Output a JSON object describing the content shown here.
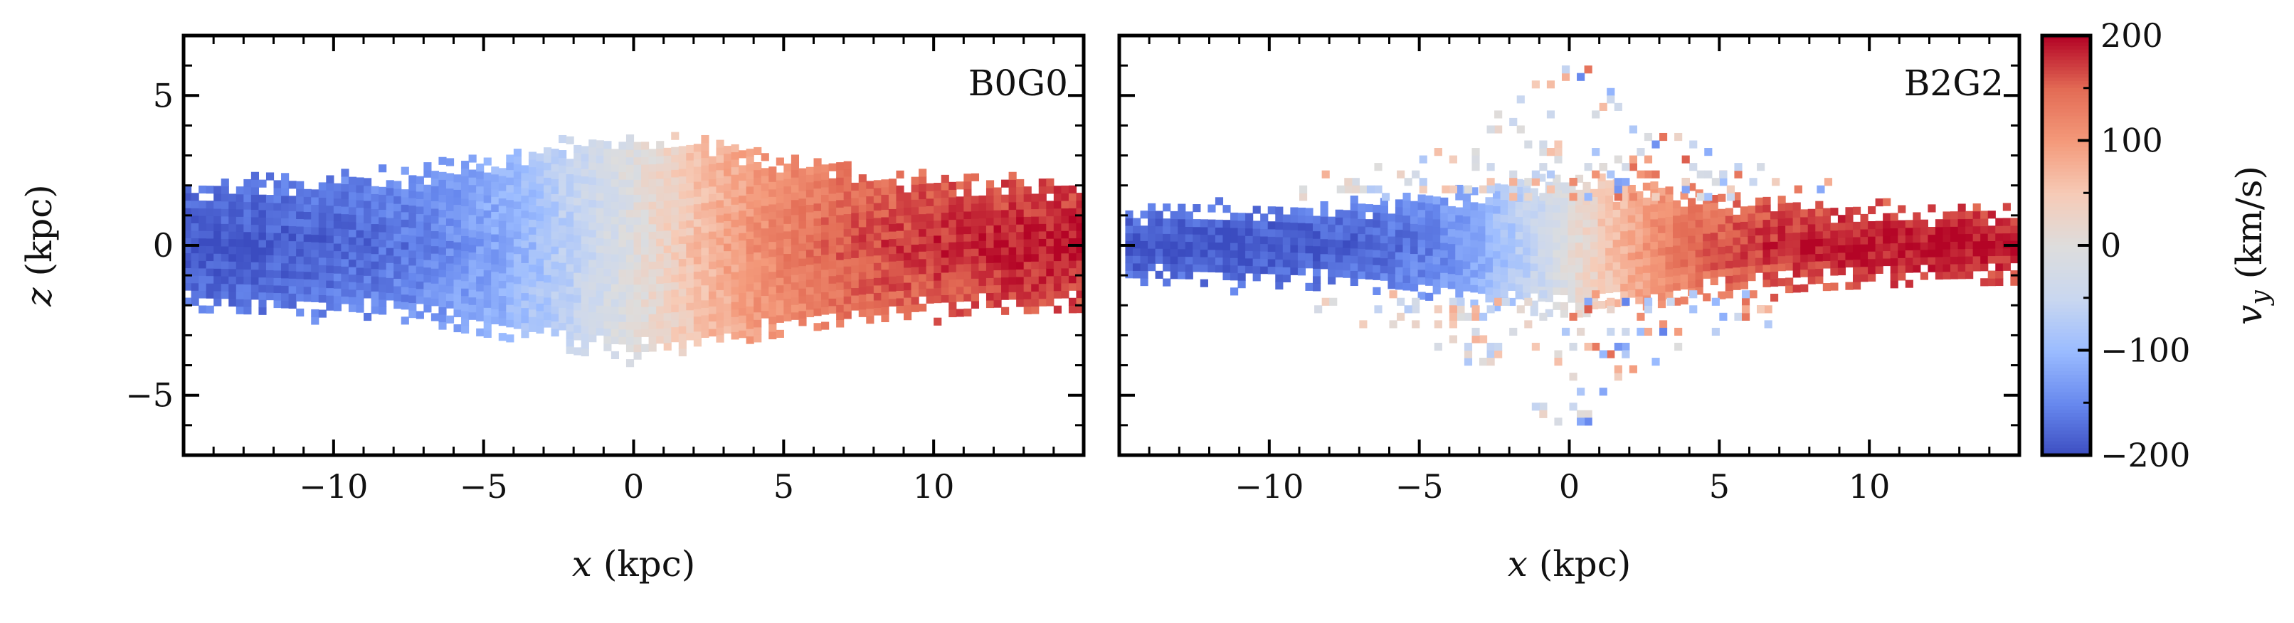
{
  "chart_data": {
    "type": "heatmap",
    "panels": [
      {
        "label": "B0G0",
        "xlabel": "x (kpc)",
        "ylabel": "z (kpc)",
        "xlim": [
          -15,
          15
        ],
        "ylim": [
          -7,
          7
        ],
        "xticks": [
          -10,
          -5,
          0,
          5,
          10
        ],
        "xtick_labels": [
          "−10",
          "−5",
          "0",
          "5",
          "10"
        ],
        "yticks": [
          -5,
          0,
          5
        ],
        "ytick_labels": [
          "−5",
          "0",
          "5"
        ],
        "disk": {
          "x_extent": 15,
          "half_thickness": 2.6,
          "edge_thickness": 1.9,
          "bulge_height": 0.9,
          "bulge_width": 5,
          "velocity_peak": 200,
          "velocity_scale": 9,
          "halo_scatter": false
        }
      },
      {
        "label": "B2G2",
        "xlabel": "x (kpc)",
        "ylabel": "",
        "xlim": [
          -15,
          15
        ],
        "ylim": [
          -7,
          7
        ],
        "xticks": [
          -10,
          -5,
          0,
          5,
          10
        ],
        "xtick_labels": [
          "−10",
          "−5",
          "0",
          "5",
          "10"
        ],
        "yticks": [
          -5,
          0,
          5
        ],
        "ytick_labels": [
          "",
          "",
          ""
        ],
        "disk": {
          "x_extent": 14.8,
          "half_thickness": 1.5,
          "edge_thickness": 1.0,
          "bulge_height": 0.6,
          "bulge_width": 4,
          "velocity_peak": 200,
          "velocity_scale": 6,
          "halo_scatter": true
        }
      }
    ],
    "colorbar": {
      "label": "v_y (km/s)",
      "label_main": "v",
      "label_sub": "y",
      "label_unit": " (km/s)",
      "vmin": -200,
      "vmax": 200,
      "ticks": [
        -200,
        -100,
        0,
        100,
        200
      ],
      "tick_labels": [
        "−200",
        "−100",
        "0",
        "100",
        "200"
      ],
      "colormap": "coolwarm",
      "stops": [
        "#3b4cc0",
        "#6788ee",
        "#9abbff",
        "#c9d7f0",
        "#dddddd",
        "#f6cbb7",
        "#f49a7b",
        "#e36c55",
        "#b40426"
      ]
    }
  }
}
